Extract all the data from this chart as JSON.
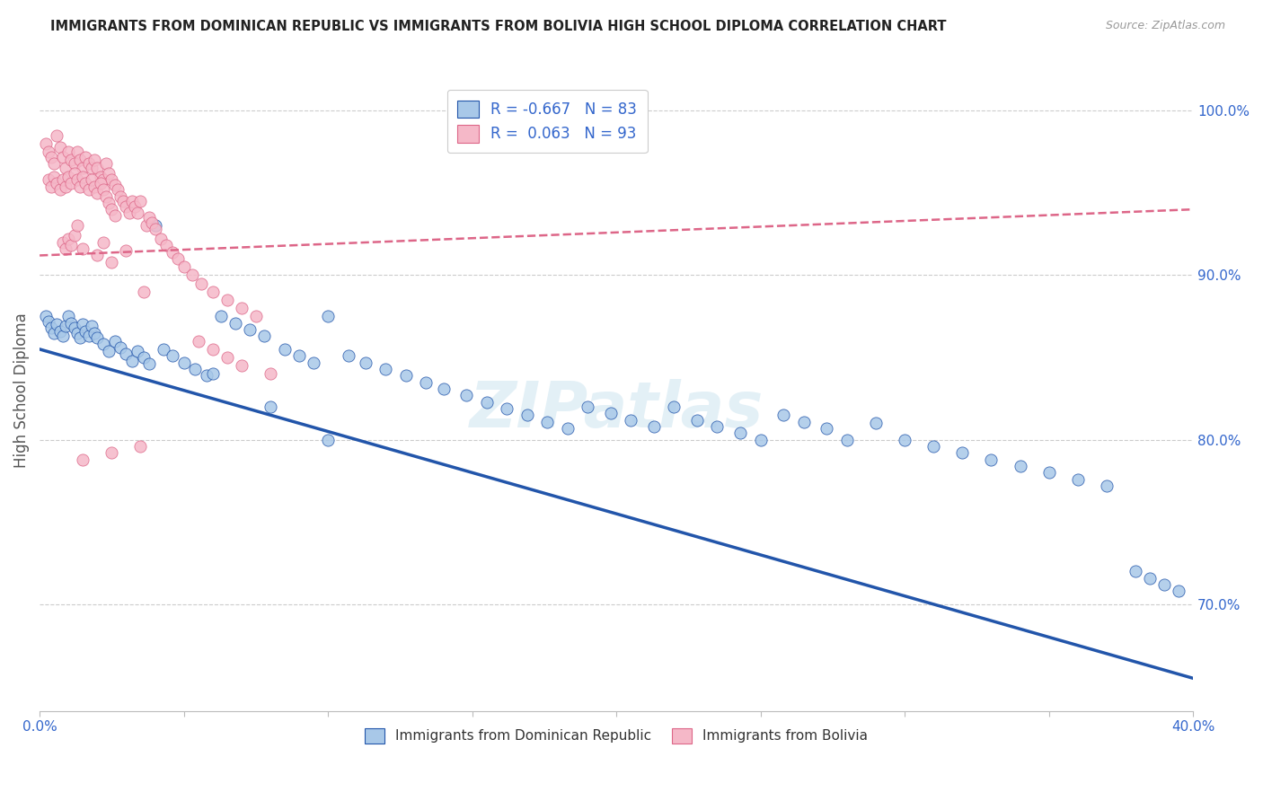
{
  "title": "IMMIGRANTS FROM DOMINICAN REPUBLIC VS IMMIGRANTS FROM BOLIVIA HIGH SCHOOL DIPLOMA CORRELATION CHART",
  "source": "Source: ZipAtlas.com",
  "ylabel": "High School Diploma",
  "right_yticks": [
    "100.0%",
    "90.0%",
    "80.0%",
    "70.0%"
  ],
  "right_ytick_vals": [
    1.0,
    0.9,
    0.8,
    0.7
  ],
  "legend_blue_r": "R = -0.667",
  "legend_blue_n": "N = 83",
  "legend_pink_r": "R =  0.063",
  "legend_pink_n": "N = 93",
  "blue_color": "#a8c8e8",
  "pink_color": "#f5b8c8",
  "blue_line_color": "#2255aa",
  "pink_line_color": "#dd6688",
  "background_color": "#ffffff",
  "watermark": "ZIPatlas",
  "xmin": 0.0,
  "xmax": 0.4,
  "ymin": 0.635,
  "ymax": 1.025,
  "blue_trend_x0": 0.0,
  "blue_trend_x1": 0.4,
  "blue_trend_y0": 0.855,
  "blue_trend_y1": 0.655,
  "pink_trend_x0": 0.0,
  "pink_trend_x1": 0.4,
  "pink_trend_y0": 0.912,
  "pink_trend_y1": 0.94,
  "blue_scatter_x": [
    0.002,
    0.003,
    0.004,
    0.005,
    0.006,
    0.007,
    0.008,
    0.009,
    0.01,
    0.011,
    0.012,
    0.013,
    0.014,
    0.015,
    0.016,
    0.017,
    0.018,
    0.019,
    0.02,
    0.022,
    0.024,
    0.026,
    0.028,
    0.03,
    0.032,
    0.034,
    0.036,
    0.038,
    0.04,
    0.043,
    0.046,
    0.05,
    0.054,
    0.058,
    0.063,
    0.068,
    0.073,
    0.078,
    0.085,
    0.09,
    0.095,
    0.1,
    0.107,
    0.113,
    0.12,
    0.127,
    0.134,
    0.14,
    0.148,
    0.155,
    0.162,
    0.169,
    0.176,
    0.183,
    0.19,
    0.198,
    0.205,
    0.213,
    0.22,
    0.228,
    0.235,
    0.243,
    0.25,
    0.258,
    0.265,
    0.273,
    0.28,
    0.29,
    0.3,
    0.31,
    0.32,
    0.33,
    0.34,
    0.35,
    0.36,
    0.37,
    0.38,
    0.385,
    0.39,
    0.395,
    0.06,
    0.08,
    0.1
  ],
  "blue_scatter_y": [
    0.875,
    0.872,
    0.868,
    0.865,
    0.87,
    0.866,
    0.863,
    0.869,
    0.875,
    0.871,
    0.868,
    0.865,
    0.862,
    0.87,
    0.866,
    0.863,
    0.869,
    0.865,
    0.862,
    0.858,
    0.854,
    0.86,
    0.856,
    0.852,
    0.848,
    0.854,
    0.85,
    0.846,
    0.93,
    0.855,
    0.851,
    0.847,
    0.843,
    0.839,
    0.875,
    0.871,
    0.867,
    0.863,
    0.855,
    0.851,
    0.847,
    0.875,
    0.851,
    0.847,
    0.843,
    0.839,
    0.835,
    0.831,
    0.827,
    0.823,
    0.819,
    0.815,
    0.811,
    0.807,
    0.82,
    0.816,
    0.812,
    0.808,
    0.82,
    0.812,
    0.808,
    0.804,
    0.8,
    0.815,
    0.811,
    0.807,
    0.8,
    0.81,
    0.8,
    0.796,
    0.792,
    0.788,
    0.784,
    0.78,
    0.776,
    0.772,
    0.72,
    0.716,
    0.712,
    0.708,
    0.84,
    0.82,
    0.8
  ],
  "pink_scatter_x": [
    0.002,
    0.003,
    0.004,
    0.005,
    0.006,
    0.007,
    0.008,
    0.009,
    0.01,
    0.011,
    0.012,
    0.013,
    0.014,
    0.015,
    0.016,
    0.017,
    0.018,
    0.019,
    0.02,
    0.021,
    0.022,
    0.023,
    0.024,
    0.025,
    0.026,
    0.027,
    0.028,
    0.029,
    0.03,
    0.031,
    0.032,
    0.033,
    0.034,
    0.035,
    0.036,
    0.037,
    0.038,
    0.039,
    0.04,
    0.042,
    0.044,
    0.046,
    0.048,
    0.05,
    0.053,
    0.056,
    0.06,
    0.065,
    0.07,
    0.075,
    0.003,
    0.004,
    0.005,
    0.006,
    0.007,
    0.008,
    0.009,
    0.01,
    0.011,
    0.012,
    0.013,
    0.014,
    0.015,
    0.016,
    0.017,
    0.018,
    0.019,
    0.02,
    0.021,
    0.022,
    0.023,
    0.024,
    0.025,
    0.026,
    0.008,
    0.009,
    0.01,
    0.011,
    0.012,
    0.013,
    0.02,
    0.025,
    0.03,
    0.022,
    0.015,
    0.055,
    0.06,
    0.065,
    0.07,
    0.08,
    0.015,
    0.025,
    0.035
  ],
  "pink_scatter_y": [
    0.98,
    0.975,
    0.972,
    0.968,
    0.985,
    0.978,
    0.972,
    0.965,
    0.975,
    0.97,
    0.968,
    0.975,
    0.97,
    0.965,
    0.972,
    0.968,
    0.965,
    0.97,
    0.965,
    0.96,
    0.958,
    0.968,
    0.962,
    0.958,
    0.955,
    0.952,
    0.948,
    0.945,
    0.942,
    0.938,
    0.945,
    0.942,
    0.938,
    0.945,
    0.89,
    0.93,
    0.935,
    0.932,
    0.928,
    0.922,
    0.918,
    0.914,
    0.91,
    0.905,
    0.9,
    0.895,
    0.89,
    0.885,
    0.88,
    0.875,
    0.958,
    0.954,
    0.96,
    0.956,
    0.952,
    0.958,
    0.954,
    0.96,
    0.956,
    0.962,
    0.958,
    0.954,
    0.96,
    0.956,
    0.952,
    0.958,
    0.954,
    0.95,
    0.956,
    0.952,
    0.948,
    0.944,
    0.94,
    0.936,
    0.92,
    0.916,
    0.922,
    0.918,
    0.924,
    0.93,
    0.912,
    0.908,
    0.915,
    0.92,
    0.916,
    0.86,
    0.855,
    0.85,
    0.845,
    0.84,
    0.788,
    0.792,
    0.796
  ]
}
